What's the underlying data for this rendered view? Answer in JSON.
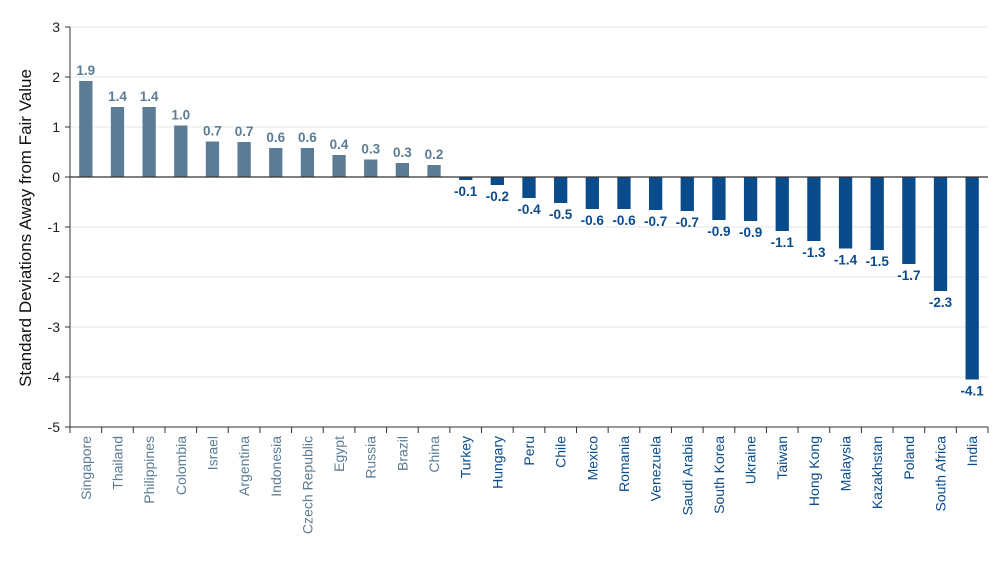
{
  "chart_data": {
    "type": "bar",
    "ylabel": "Standard Deviations Away from Fair Value",
    "ylim": [
      -5,
      3
    ],
    "yticks": [
      "3",
      "2",
      "1",
      "0",
      "-1",
      "-2",
      "-3",
      "-4",
      "-5"
    ],
    "grid": true,
    "categories": [
      "Singapore",
      "Thailand",
      "Philippines",
      "Colombia",
      "Israel",
      "Argentina",
      "Indonesia",
      "Czech Republic",
      "Egypt",
      "Russia",
      "Brazil",
      "China",
      "Turkey",
      "Hungary",
      "Peru",
      "Chile",
      "Mexico",
      "Romania",
      "Venezuela",
      "Saudi Arabia",
      "South Korea",
      "Ukraine",
      "Taiwan",
      "Hong Kong",
      "Malaysia",
      "Kazakhstan",
      "Poland",
      "South Africa",
      "India"
    ],
    "values": [
      1.92,
      1.4,
      1.4,
      1.03,
      0.71,
      0.7,
      0.58,
      0.58,
      0.44,
      0.35,
      0.28,
      0.24,
      -0.06,
      -0.16,
      -0.42,
      -0.52,
      -0.64,
      -0.64,
      -0.66,
      -0.68,
      -0.86,
      -0.88,
      -1.08,
      -1.28,
      -1.43,
      -1.46,
      -1.74,
      -2.28,
      -4.05
    ],
    "value_labels": [
      "1.9",
      "1.4",
      "1.4",
      "1.0",
      "0.7",
      "0.7",
      "0.6",
      "0.6",
      "0.4",
      "0.3",
      "0.3",
      "0.2",
      "-0.1",
      "-0.2",
      "-0.4",
      "-0.5",
      "-0.6",
      "-0.6",
      "-0.7",
      "-0.7",
      "-0.9",
      "-0.9",
      "-1.1",
      "-1.3",
      "-1.4",
      "-1.5",
      "-1.7",
      "-2.3",
      "-4.1"
    ],
    "colors": {
      "positive": "#5b7c94",
      "negative": "#0a4b8c",
      "grid": "#e6e6e6",
      "axis": "#333333"
    }
  }
}
